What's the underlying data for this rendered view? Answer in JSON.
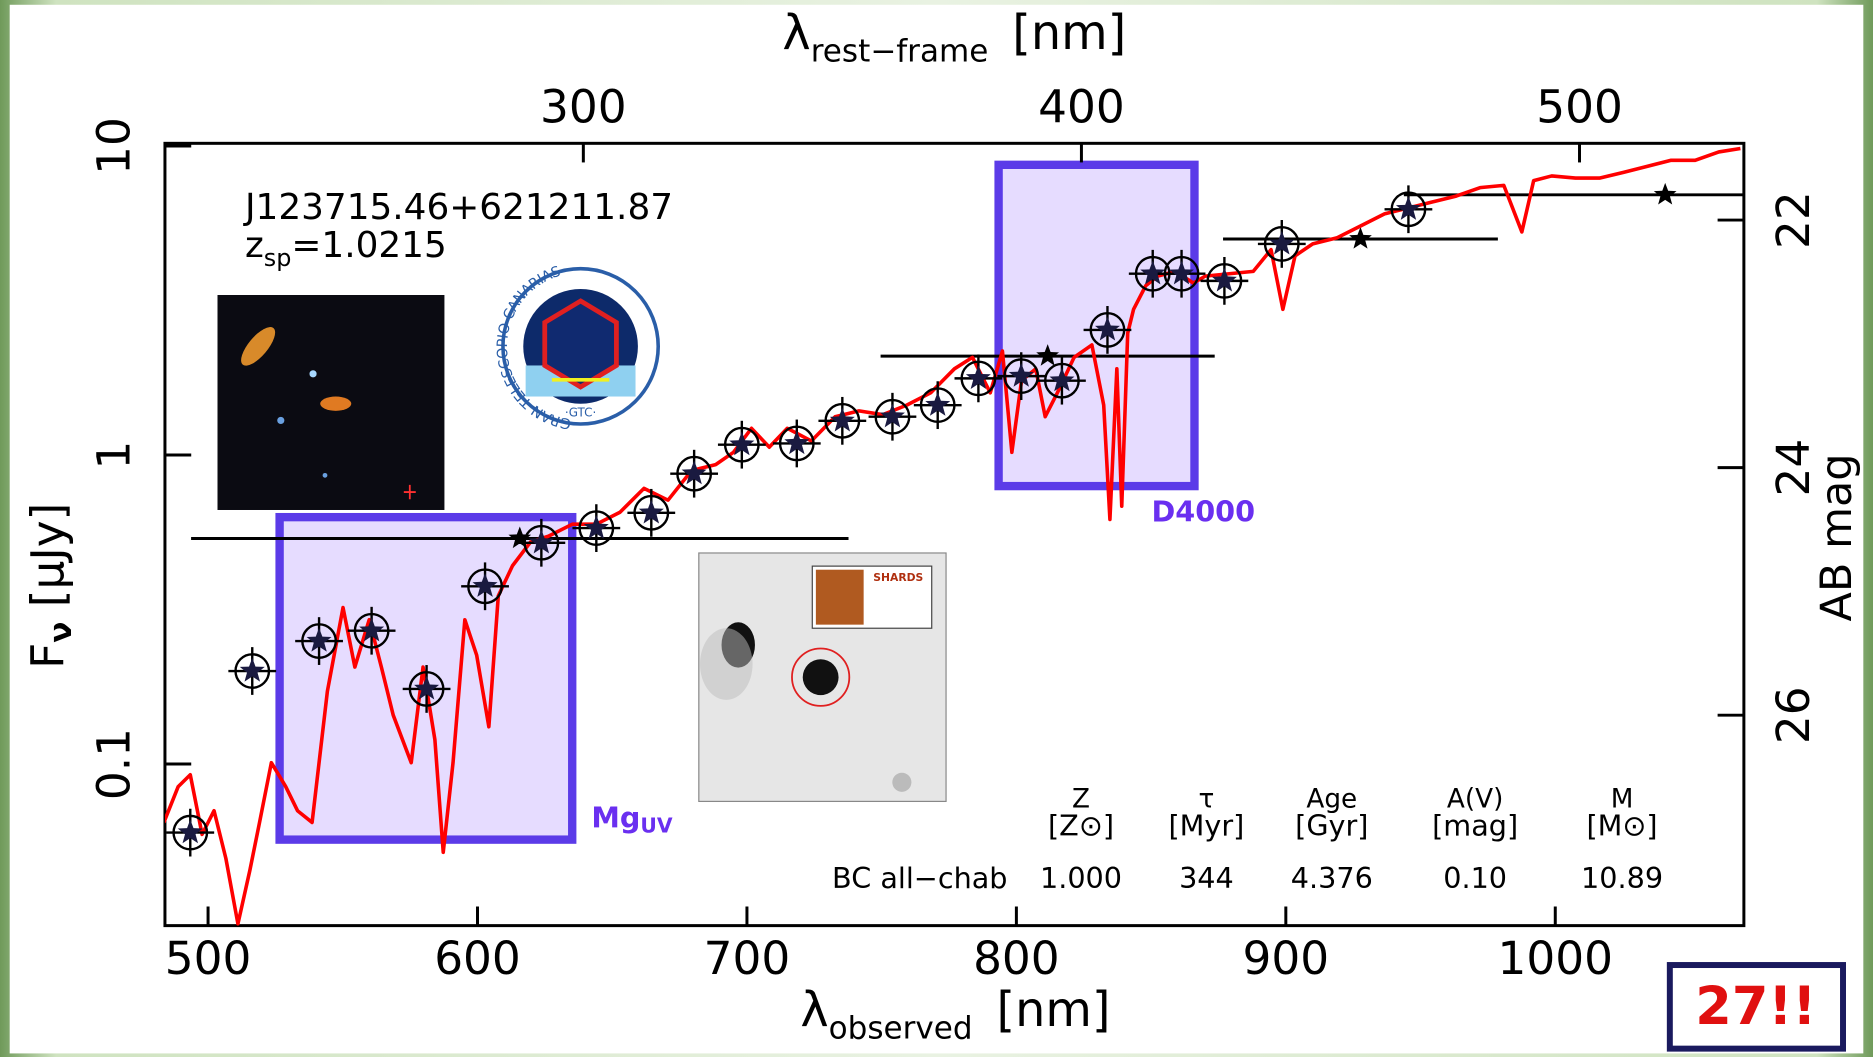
{
  "chart_data": {
    "type": "line",
    "object_name": "J123715.46+621211.87",
    "redshift_label": {
      "symbol": "z",
      "subscript": "sp",
      "text": "=1.0215"
    },
    "x_label": {
      "symbol": "λ",
      "subscript": "observed",
      "unit": "[nm]"
    },
    "x2_label": {
      "symbol": "λ",
      "subscript": "rest−frame",
      "unit": "[nm]"
    },
    "y_label": {
      "symbol": "F",
      "subscript": "ν",
      "unit": "[μJy]"
    },
    "y2_label": "AB mag",
    "xlim": [
      484,
      1070
    ],
    "xticks": [
      500,
      600,
      700,
      800,
      900,
      1000
    ],
    "x2lim": [
      216,
      533
    ],
    "x2ticks": [
      300,
      400,
      500
    ],
    "ylim": [
      0.03,
      10.2
    ],
    "yticks": [
      0.1,
      1,
      10
    ],
    "log_y": true,
    "y2lim": [
      27.7,
      21.38
    ],
    "y2ticks": [
      22,
      24,
      26
    ],
    "spectrum": {
      "color": "#ff0000",
      "x": [
        483.6,
        488.9,
        493.4,
        497.8,
        502.2,
        506.6,
        511.1,
        515.5,
        519.1,
        523.5,
        528.8,
        533.2,
        538.6,
        544.3,
        550.1,
        554.5,
        559.8,
        564.3,
        568.7,
        575.4,
        579.8,
        584.2,
        587.3,
        590.9,
        595.3,
        599.7,
        604.2,
        607.7,
        613.0,
        619.7,
        626.3,
        635.2,
        644.1,
        652.9,
        661.8,
        670.7,
        679.5,
        688.4,
        695.0,
        701.7,
        708.3,
        715.0,
        723.9,
        732.7,
        741.6,
        750.4,
        759.3,
        768.2,
        777.0,
        783.7,
        790.3,
        794.8,
        798.3,
        801.9,
        807.2,
        810.7,
        815.2,
        821.4,
        828.0,
        832.4,
        834.7,
        837.3,
        839.1,
        841.3,
        843.5,
        848.0,
        852.4,
        859.0,
        865.7,
        870.1,
        879.0,
        887.9,
        894.5,
        898.9,
        903.4,
        910.0,
        918.9,
        927.7,
        936.6,
        945.5,
        954.3,
        963.2,
        972.1,
        980.9,
        987.6,
        992.0,
        998.7,
        1007.5,
        1016.4,
        1025.3,
        1034.1,
        1043.0,
        1051.9,
        1060.7,
        1068.7
      ],
      "values": [
        0.0647,
        0.0845,
        0.0923,
        0.0592,
        0.0706,
        0.0495,
        0.0304,
        0.0453,
        0.0647,
        0.101,
        0.0845,
        0.0706,
        0.0647,
        0.172,
        0.321,
        0.206,
        0.293,
        0.206,
        0.144,
        0.101,
        0.206,
        0.12,
        0.0518,
        0.101,
        0.293,
        0.225,
        0.132,
        0.35,
        0.438,
        0.523,
        0.546,
        0.597,
        0.597,
        0.653,
        0.78,
        0.714,
        0.891,
        0.931,
        1.02,
        1.22,
        1.06,
        1.22,
        1.11,
        1.33,
        1.39,
        1.35,
        1.45,
        1.59,
        1.9,
        2.07,
        1.59,
        2.17,
        1.02,
        1.74,
        1.9,
        1.33,
        1.59,
        2.07,
        2.27,
        1.45,
        0.619,
        1.9,
        0.683,
        2.48,
        2.96,
        3.53,
        3.79,
        3.93,
        3.6,
        3.79,
        3.86,
        3.93,
        4.62,
        2.96,
        4.41,
        4.82,
        5.04,
        5.51,
        6.03,
        6.3,
        6.59,
        6.88,
        7.33,
        7.46,
        5.27,
        7.73,
        8.0,
        7.87,
        7.87,
        8.22,
        8.59,
        8.99,
        8.99,
        9.57,
        9.82
      ]
    },
    "photometry": {
      "color": "#000000",
      "x": [
        493.4,
        516.4,
        541.2,
        560.7,
        581.1,
        602.8,
        623.7,
        644.1,
        664.5,
        680.4,
        698.1,
        718.5,
        735.4,
        754.0,
        770.8,
        785.9,
        801.8,
        816.9,
        833.8,
        850.6,
        861.3,
        877.2,
        898.5,
        945.5
      ],
      "values": [
        0.06,
        0.2,
        0.25,
        0.27,
        0.175,
        0.376,
        0.52,
        0.58,
        0.65,
        0.87,
        1.08,
        1.09,
        1.29,
        1.33,
        1.45,
        1.77,
        1.8,
        1.74,
        2.54,
        3.86,
        3.86,
        3.66,
        4.82,
        6.24
      ]
    },
    "broadband": {
      "color": "#000000",
      "x": [
        615.7,
        811.6,
        927.7,
        1040.8
      ],
      "values": [
        0.537,
        2.09,
        5.0,
        6.95
      ],
      "xerr": [
        122,
        62,
        51,
        97
      ]
    },
    "annotations": {
      "d4000": "D4000",
      "mg": "Mg",
      "mg_sub": "UV"
    },
    "fit_table": {
      "headers": [
        {
          "symbol": "Z",
          "unit": "[Z⊙]"
        },
        {
          "symbol": "τ",
          "unit": "[Myr]"
        },
        {
          "symbol": "Age",
          "unit": "[Gyr]"
        },
        {
          "symbol": "A(V)",
          "unit": "[mag]"
        },
        {
          "symbol": "M",
          "unit": "[M⊙]"
        }
      ],
      "row_label": "BC all−chab",
      "row": [
        "1.000",
        "344",
        "4.376",
        "0.10",
        "10.89"
      ]
    },
    "logos": {
      "gtc_ring": "GRAN TELESCOPIO CANARIAS",
      "gtc": "·GTC·",
      "shards": "SHARDS"
    },
    "badge": "27!!"
  }
}
